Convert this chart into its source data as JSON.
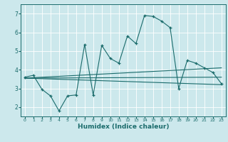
{
  "title": "",
  "xlabel": "Humidex (Indice chaleur)",
  "bg_color": "#cce8ec",
  "line_color": "#1a6b6b",
  "grid_color": "#ffffff",
  "xlim": [
    -0.5,
    23.5
  ],
  "ylim": [
    1.5,
    7.5
  ],
  "xticks": [
    0,
    1,
    2,
    3,
    4,
    5,
    6,
    7,
    8,
    9,
    10,
    11,
    12,
    13,
    14,
    15,
    16,
    17,
    18,
    19,
    20,
    21,
    22,
    23
  ],
  "yticks": [
    2,
    3,
    4,
    5,
    6,
    7
  ],
  "series1_x": [
    0,
    1,
    2,
    3,
    4,
    5,
    6,
    7,
    8,
    9,
    10,
    11,
    12,
    13,
    14,
    15,
    16,
    17,
    18,
    19,
    20,
    21,
    22,
    23
  ],
  "series1_y": [
    3.6,
    3.7,
    2.95,
    2.6,
    1.8,
    2.6,
    2.65,
    5.35,
    2.65,
    5.3,
    4.6,
    4.35,
    5.8,
    5.4,
    6.9,
    6.85,
    6.6,
    6.25,
    3.0,
    4.5,
    4.35,
    4.1,
    3.85,
    3.25
  ],
  "series2_x": [
    0,
    23
  ],
  "series2_y": [
    3.55,
    3.2
  ],
  "series3_x": [
    0,
    23
  ],
  "series3_y": [
    3.55,
    4.1
  ],
  "series4_x": [
    0,
    23
  ],
  "series4_y": [
    3.55,
    3.6
  ]
}
